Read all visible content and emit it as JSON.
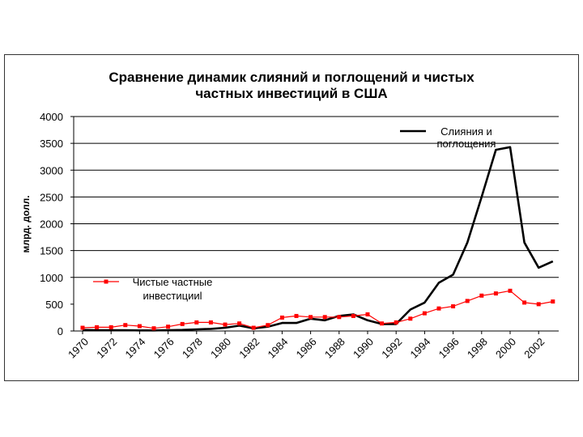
{
  "chart_data": {
    "type": "line",
    "title_lines": [
      "Сравнение динамик слияний и поглощений и чистых",
      "частных инвестиций в США"
    ],
    "ylabel": "млрд. долл.",
    "xlabel": "",
    "ylim": [
      0,
      4000
    ],
    "y_ticks": [
      0,
      500,
      1000,
      1500,
      2000,
      2500,
      3000,
      3500,
      4000
    ],
    "y_tick_labels": [
      "0",
      "500",
      "1000",
      "1500",
      "2000",
      "2500",
      "3000",
      "3500",
      "4000"
    ],
    "grid_y": [
      0,
      1000,
      1500,
      2000,
      2500,
      3000,
      3500,
      4000
    ],
    "x_tick_labels": [
      "1970",
      "1972",
      "1974",
      "1976",
      "1978",
      "1980",
      "1982",
      "1984",
      "1986",
      "1988",
      "1990",
      "1992",
      "1994",
      "1996",
      "1998",
      "2000",
      "2002"
    ],
    "x": [
      1970,
      1971,
      1972,
      1973,
      1974,
      1975,
      1976,
      1977,
      1978,
      1979,
      1980,
      1981,
      1982,
      1983,
      1984,
      1985,
      1986,
      1987,
      1988,
      1989,
      1990,
      1991,
      1992,
      1993,
      1994,
      1995,
      1996,
      1997,
      1998,
      1999,
      2000,
      2001,
      2002,
      2003
    ],
    "series": [
      {
        "name": "Слияния и поглощения",
        "legend_lines": [
          "Слияния и",
          "поглощения"
        ],
        "legend_position": "top-right",
        "color": "#000000",
        "marker": "none",
        "values": [
          20,
          15,
          15,
          15,
          10,
          10,
          15,
          20,
          30,
          40,
          60,
          100,
          50,
          80,
          150,
          150,
          230,
          200,
          280,
          310,
          200,
          130,
          130,
          400,
          530,
          900,
          1050,
          1650,
          2500,
          3380,
          3430,
          1650,
          1180,
          1300
        ]
      },
      {
        "name": "Чистые частные инвестицииl",
        "legend_lines": [
          "Чистые частные",
          "инвестицииl"
        ],
        "legend_position": "middle-left",
        "color": "#ff0000",
        "marker": "square",
        "values": [
          60,
          70,
          70,
          110,
          90,
          50,
          80,
          130,
          160,
          160,
          120,
          140,
          60,
          110,
          250,
          280,
          260,
          260,
          260,
          280,
          310,
          140,
          160,
          230,
          330,
          420,
          460,
          560,
          660,
          700,
          750,
          530,
          500,
          550
        ]
      }
    ]
  }
}
